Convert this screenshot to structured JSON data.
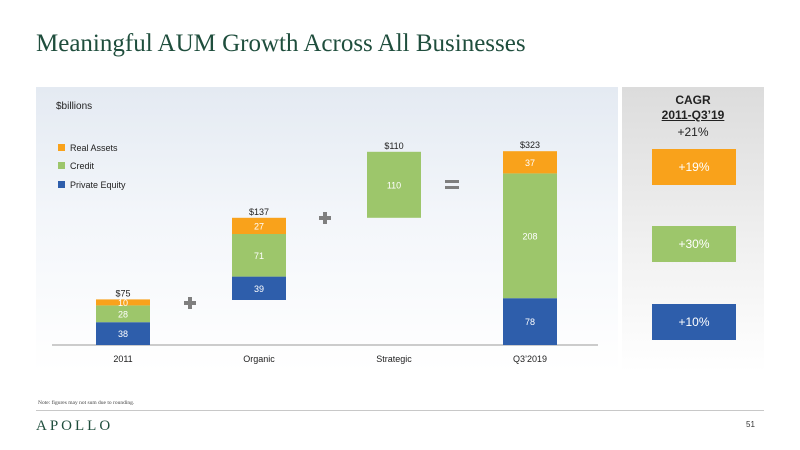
{
  "slide": {
    "title": "Meaningful AUM Growth Across All Businesses",
    "note": "Note: figures may not sum due to rounding.",
    "logo": "APOLLO",
    "page_number": "51"
  },
  "cagr": {
    "title_line1": "CAGR",
    "title_line2": "2011-Q3’19",
    "total": "+21%",
    "boxes": [
      {
        "label": "+19%",
        "series": "Real Assets",
        "color": "#f9a21b"
      },
      {
        "label": "+30%",
        "series": "Credit",
        "color": "#9dc66b"
      },
      {
        "label": "+10%",
        "series": "Private Equity",
        "color": "#2e5eab"
      }
    ]
  },
  "colors": {
    "private_equity": "#2e5eab",
    "credit": "#9dc66b",
    "real_assets": "#f9a21b",
    "operator": "#7f7f7f"
  },
  "chart_data": {
    "type": "bar",
    "subtype": "waterfall-stacked",
    "unit_label": "$billions",
    "categories": [
      "2011",
      "Organic",
      "Strategic",
      "Q3’2019"
    ],
    "legend": [
      "Real Assets",
      "Credit",
      "Private Equity"
    ],
    "legend_placement": "top-left",
    "series": [
      {
        "name": "Private Equity",
        "values": [
          38,
          39,
          0,
          78
        ]
      },
      {
        "name": "Credit",
        "values": [
          28,
          71,
          110,
          208
        ]
      },
      {
        "name": "Real Assets",
        "values": [
          10,
          27,
          0,
          37
        ]
      }
    ],
    "bar_labels": [
      [
        "38",
        "28",
        "10"
      ],
      [
        "39",
        "71",
        "27"
      ],
      [
        "",
        "110",
        ""
      ],
      [
        "78",
        "208",
        "37"
      ]
    ],
    "bases": [
      0,
      75,
      212,
      0
    ],
    "totals": [
      "$75",
      "$137",
      "$110",
      "$323"
    ],
    "operators": [
      "+",
      "+",
      "="
    ],
    "ylim": [
      0,
      340
    ],
    "grid": false
  }
}
